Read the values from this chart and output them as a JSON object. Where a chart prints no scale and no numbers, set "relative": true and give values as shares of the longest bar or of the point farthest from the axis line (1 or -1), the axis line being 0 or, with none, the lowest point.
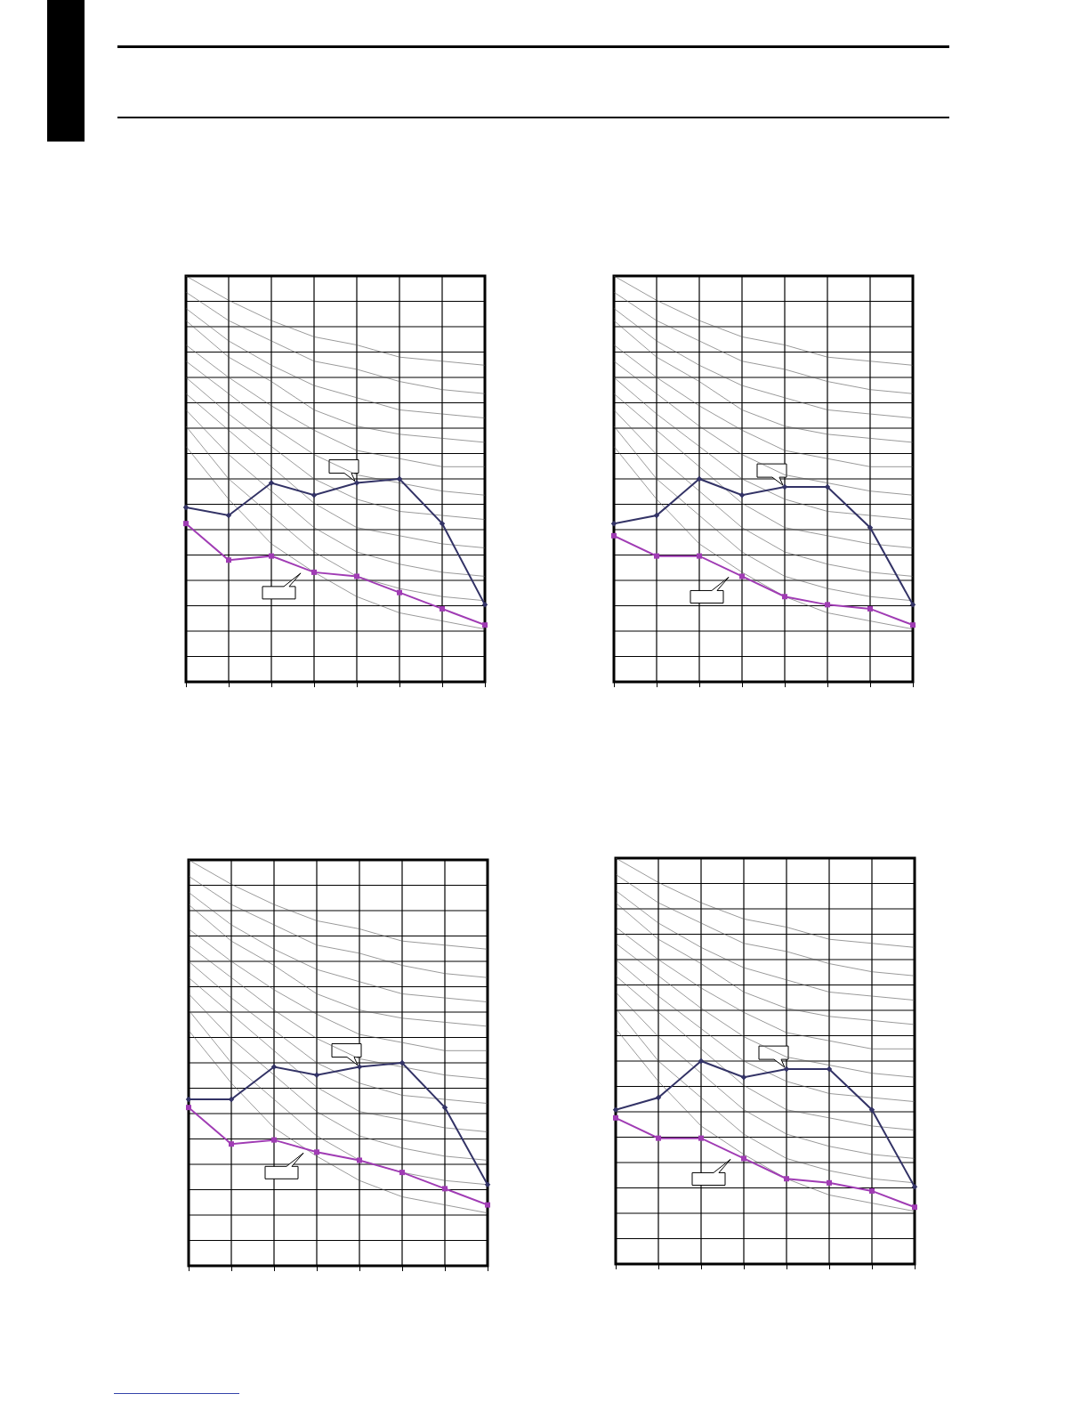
{
  "chart_data": [
    {
      "type": "line",
      "relative": true,
      "grid": true,
      "line_style": "solid",
      "categories": [
        null,
        null,
        null,
        null,
        null,
        null,
        null,
        null
      ],
      "series": [
        {
          "color": "#555555",
          "marker": "none",
          "values": [
            1.0,
            0.94,
            0.89,
            0.85,
            0.83,
            0.8,
            0.79,
            0.78
          ]
        },
        {
          "color": "#555555",
          "marker": "none",
          "values": [
            0.96,
            0.89,
            0.84,
            0.79,
            0.77,
            0.74,
            0.72,
            0.71
          ]
        },
        {
          "color": "#555555",
          "marker": "none",
          "values": [
            0.92,
            0.84,
            0.78,
            0.73,
            0.7,
            0.67,
            0.66,
            0.65
          ]
        },
        {
          "color": "#555555",
          "marker": "none",
          "values": [
            0.89,
            0.8,
            0.74,
            0.67,
            0.63,
            0.61,
            0.6,
            0.59
          ]
        },
        {
          "color": "#555555",
          "marker": "none",
          "values": [
            0.83,
            0.75,
            0.68,
            0.62,
            0.57,
            0.55,
            0.53,
            0.53
          ]
        },
        {
          "color": "#555555",
          "marker": "none",
          "values": [
            0.79,
            0.71,
            0.63,
            0.56,
            0.51,
            0.49,
            0.47,
            0.46
          ]
        },
        {
          "color": "#555555",
          "marker": "none",
          "values": [
            0.75,
            0.66,
            0.58,
            0.5,
            0.45,
            0.42,
            0.41,
            0.4
          ]
        },
        {
          "color": "#555555",
          "marker": "none",
          "values": [
            0.71,
            0.62,
            0.53,
            0.44,
            0.38,
            0.36,
            0.34,
            0.33
          ]
        },
        {
          "color": "#555555",
          "marker": "none",
          "values": [
            0.67,
            0.56,
            0.47,
            0.38,
            0.32,
            0.29,
            0.27,
            0.26
          ]
        },
        {
          "color": "#555555",
          "marker": "none",
          "values": [
            0.63,
            0.5,
            0.41,
            0.32,
            0.26,
            0.23,
            0.21,
            0.2
          ]
        },
        {
          "color": "#555555",
          "marker": "none",
          "values": [
            0.58,
            0.45,
            0.34,
            0.27,
            0.21,
            0.17,
            0.15,
            0.13
          ]
        },
        {
          "color": "#333366",
          "marker": "diamond",
          "values": [
            0.43,
            0.41,
            0.49,
            0.46,
            0.49,
            0.5,
            0.39,
            0.19
          ]
        },
        {
          "color": "#a03cb4",
          "marker": "square",
          "values": [
            0.39,
            0.3,
            0.31,
            0.27,
            0.26,
            0.22,
            0.18,
            0.14
          ]
        }
      ]
    },
    {
      "type": "line",
      "relative": true,
      "grid": true,
      "line_style": "solid",
      "categories": [
        null,
        null,
        null,
        null,
        null,
        null,
        null,
        null
      ],
      "series": [
        {
          "color": "#555555",
          "marker": "none",
          "values": [
            1.0,
            0.94,
            0.89,
            0.85,
            0.83,
            0.8,
            0.79,
            0.78
          ]
        },
        {
          "color": "#555555",
          "marker": "none",
          "values": [
            0.96,
            0.89,
            0.84,
            0.79,
            0.77,
            0.74,
            0.72,
            0.71
          ]
        },
        {
          "color": "#555555",
          "marker": "none",
          "values": [
            0.92,
            0.84,
            0.78,
            0.73,
            0.7,
            0.67,
            0.66,
            0.65
          ]
        },
        {
          "color": "#555555",
          "marker": "none",
          "values": [
            0.89,
            0.8,
            0.74,
            0.67,
            0.63,
            0.61,
            0.6,
            0.59
          ]
        },
        {
          "color": "#555555",
          "marker": "none",
          "values": [
            0.83,
            0.75,
            0.68,
            0.62,
            0.57,
            0.55,
            0.53,
            0.53
          ]
        },
        {
          "color": "#555555",
          "marker": "none",
          "values": [
            0.79,
            0.71,
            0.63,
            0.56,
            0.51,
            0.49,
            0.47,
            0.46
          ]
        },
        {
          "color": "#555555",
          "marker": "none",
          "values": [
            0.75,
            0.66,
            0.58,
            0.5,
            0.45,
            0.42,
            0.41,
            0.4
          ]
        },
        {
          "color": "#555555",
          "marker": "none",
          "values": [
            0.71,
            0.62,
            0.53,
            0.44,
            0.38,
            0.36,
            0.34,
            0.33
          ]
        },
        {
          "color": "#555555",
          "marker": "none",
          "values": [
            0.67,
            0.56,
            0.47,
            0.38,
            0.32,
            0.29,
            0.27,
            0.26
          ]
        },
        {
          "color": "#555555",
          "marker": "none",
          "values": [
            0.63,
            0.5,
            0.41,
            0.32,
            0.26,
            0.23,
            0.21,
            0.2
          ]
        },
        {
          "color": "#555555",
          "marker": "none",
          "values": [
            0.58,
            0.45,
            0.34,
            0.27,
            0.21,
            0.17,
            0.15,
            0.13
          ]
        },
        {
          "color": "#333366",
          "marker": "diamond",
          "values": [
            0.39,
            0.41,
            0.5,
            0.46,
            0.48,
            0.48,
            0.38,
            0.19
          ]
        },
        {
          "color": "#a03cb4",
          "marker": "square",
          "values": [
            0.36,
            0.31,
            0.31,
            0.26,
            0.21,
            0.19,
            0.18,
            0.14
          ]
        }
      ]
    },
    {
      "type": "line",
      "relative": true,
      "grid": true,
      "line_style": "solid",
      "categories": [
        null,
        null,
        null,
        null,
        null,
        null,
        null,
        null
      ],
      "series": [
        {
          "color": "#555555",
          "marker": "none",
          "values": [
            1.0,
            0.94,
            0.89,
            0.85,
            0.83,
            0.8,
            0.79,
            0.78
          ]
        },
        {
          "color": "#555555",
          "marker": "none",
          "values": [
            0.96,
            0.89,
            0.84,
            0.79,
            0.77,
            0.74,
            0.72,
            0.71
          ]
        },
        {
          "color": "#555555",
          "marker": "none",
          "values": [
            0.92,
            0.84,
            0.78,
            0.73,
            0.7,
            0.67,
            0.66,
            0.65
          ]
        },
        {
          "color": "#555555",
          "marker": "none",
          "values": [
            0.89,
            0.8,
            0.74,
            0.67,
            0.63,
            0.61,
            0.6,
            0.59
          ]
        },
        {
          "color": "#555555",
          "marker": "none",
          "values": [
            0.83,
            0.75,
            0.68,
            0.62,
            0.57,
            0.55,
            0.53,
            0.53
          ]
        },
        {
          "color": "#555555",
          "marker": "none",
          "values": [
            0.79,
            0.71,
            0.63,
            0.56,
            0.51,
            0.49,
            0.47,
            0.46
          ]
        },
        {
          "color": "#555555",
          "marker": "none",
          "values": [
            0.75,
            0.66,
            0.58,
            0.5,
            0.45,
            0.42,
            0.41,
            0.4
          ]
        },
        {
          "color": "#555555",
          "marker": "none",
          "values": [
            0.71,
            0.62,
            0.53,
            0.44,
            0.38,
            0.36,
            0.34,
            0.33
          ]
        },
        {
          "color": "#555555",
          "marker": "none",
          "values": [
            0.67,
            0.56,
            0.47,
            0.38,
            0.32,
            0.29,
            0.27,
            0.26
          ]
        },
        {
          "color": "#555555",
          "marker": "none",
          "values": [
            0.63,
            0.5,
            0.41,
            0.32,
            0.26,
            0.23,
            0.21,
            0.2
          ]
        },
        {
          "color": "#555555",
          "marker": "none",
          "values": [
            0.58,
            0.45,
            0.34,
            0.27,
            0.21,
            0.17,
            0.15,
            0.13
          ]
        },
        {
          "color": "#333366",
          "marker": "diamond",
          "values": [
            0.41,
            0.41,
            0.49,
            0.47,
            0.49,
            0.5,
            0.39,
            0.2
          ]
        },
        {
          "color": "#a03cb4",
          "marker": "square",
          "values": [
            0.39,
            0.3,
            0.31,
            0.28,
            0.26,
            0.23,
            0.19,
            0.15
          ]
        }
      ]
    },
    {
      "type": "line",
      "relative": true,
      "grid": true,
      "line_style": "solid",
      "categories": [
        null,
        null,
        null,
        null,
        null,
        null,
        null,
        null
      ],
      "series": [
        {
          "color": "#555555",
          "marker": "none",
          "values": [
            1.0,
            0.94,
            0.89,
            0.85,
            0.83,
            0.8,
            0.79,
            0.78
          ]
        },
        {
          "color": "#555555",
          "marker": "none",
          "values": [
            0.96,
            0.89,
            0.84,
            0.79,
            0.77,
            0.74,
            0.72,
            0.71
          ]
        },
        {
          "color": "#555555",
          "marker": "none",
          "values": [
            0.92,
            0.84,
            0.78,
            0.73,
            0.7,
            0.67,
            0.66,
            0.65
          ]
        },
        {
          "color": "#555555",
          "marker": "none",
          "values": [
            0.89,
            0.8,
            0.74,
            0.67,
            0.63,
            0.61,
            0.6,
            0.59
          ]
        },
        {
          "color": "#555555",
          "marker": "none",
          "values": [
            0.83,
            0.75,
            0.68,
            0.62,
            0.57,
            0.55,
            0.53,
            0.53
          ]
        },
        {
          "color": "#555555",
          "marker": "none",
          "values": [
            0.79,
            0.71,
            0.63,
            0.56,
            0.51,
            0.49,
            0.47,
            0.46
          ]
        },
        {
          "color": "#555555",
          "marker": "none",
          "values": [
            0.75,
            0.66,
            0.58,
            0.5,
            0.45,
            0.42,
            0.41,
            0.4
          ]
        },
        {
          "color": "#555555",
          "marker": "none",
          "values": [
            0.71,
            0.62,
            0.53,
            0.44,
            0.38,
            0.36,
            0.34,
            0.33
          ]
        },
        {
          "color": "#555555",
          "marker": "none",
          "values": [
            0.67,
            0.56,
            0.47,
            0.38,
            0.32,
            0.29,
            0.27,
            0.26
          ]
        },
        {
          "color": "#555555",
          "marker": "none",
          "values": [
            0.63,
            0.5,
            0.41,
            0.32,
            0.26,
            0.23,
            0.21,
            0.2
          ]
        },
        {
          "color": "#555555",
          "marker": "none",
          "values": [
            0.58,
            0.45,
            0.34,
            0.27,
            0.21,
            0.17,
            0.15,
            0.13
          ]
        },
        {
          "color": "#333366",
          "marker": "diamond",
          "values": [
            0.38,
            0.41,
            0.5,
            0.46,
            0.48,
            0.48,
            0.38,
            0.19
          ]
        },
        {
          "color": "#a03cb4",
          "marker": "square",
          "values": [
            0.36,
            0.31,
            0.31,
            0.26,
            0.21,
            0.2,
            0.18,
            0.14
          ]
        }
      ]
    }
  ]
}
